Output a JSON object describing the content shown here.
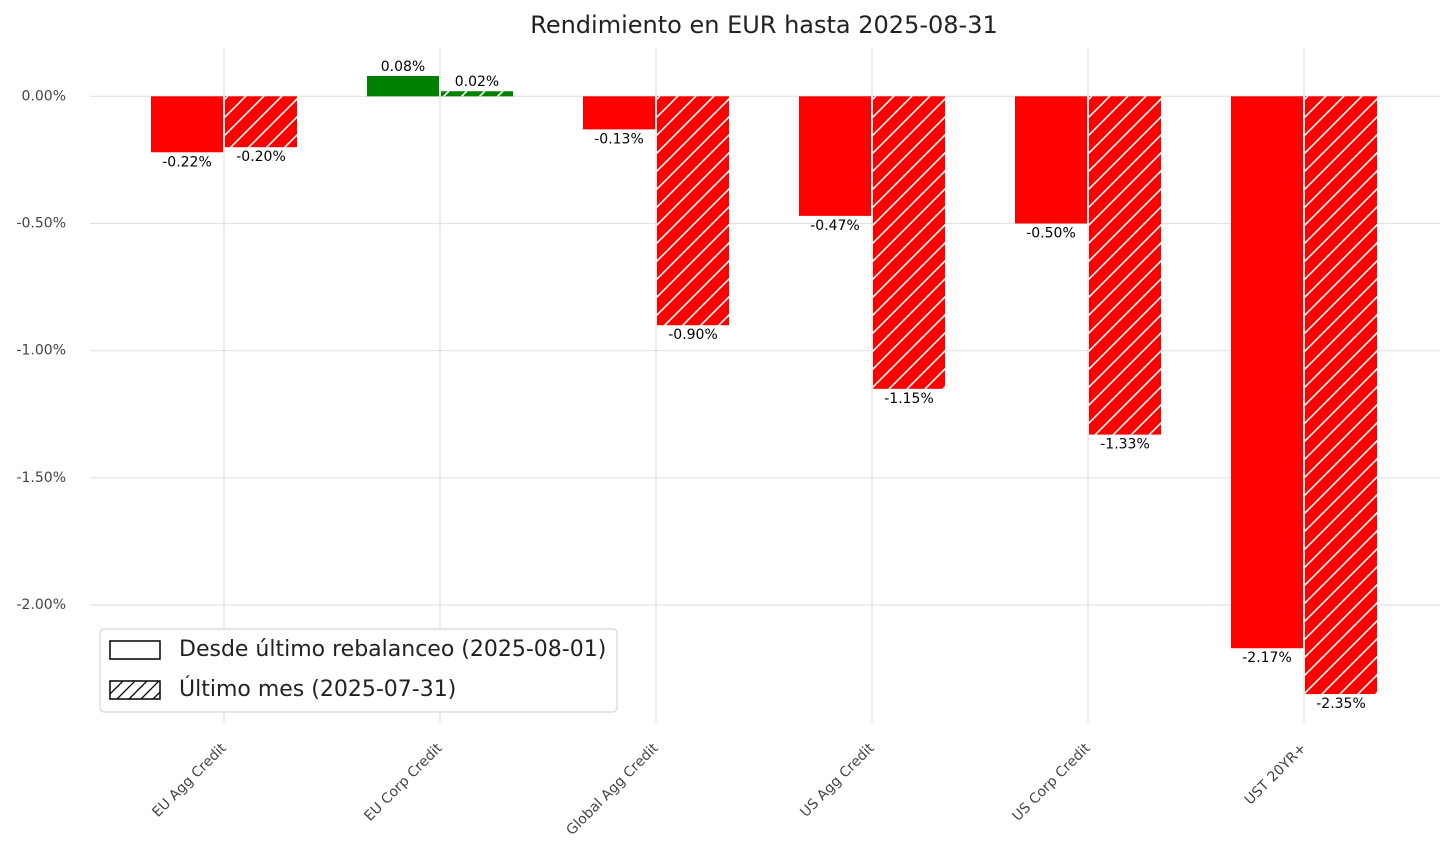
{
  "chart_data": {
    "type": "grouped_bar",
    "title": "Rendimiento en EUR hasta 2025-08-31",
    "categories": [
      "EU Agg Credit",
      "EU Corp Credit",
      "Global Agg Credit",
      "US Agg Credit",
      "US Corp Credit",
      "UST 20YR+"
    ],
    "series": [
      {
        "name": "Desde último rebalanceo (2025-08-01)",
        "hatch": "none",
        "colors": [
          "#ff0000",
          "#008000",
          "#ff0000",
          "#ff0000",
          "#ff0000",
          "#ff0000"
        ],
        "values": [
          -0.22,
          0.08,
          -0.13,
          -0.47,
          -0.5,
          -2.17
        ],
        "value_labels": [
          "-0.22%",
          "0.08%",
          "-0.13%",
          "-0.47%",
          "-0.50%",
          "-2.17%"
        ]
      },
      {
        "name": "Último mes (2025-07-31)",
        "hatch": "//",
        "colors": [
          "#ff0000",
          "#008000",
          "#ff0000",
          "#ff0000",
          "#ff0000",
          "#ff0000"
        ],
        "values": [
          -0.2,
          0.02,
          -0.9,
          -1.15,
          -1.33,
          -2.35
        ],
        "value_labels": [
          "-0.20%",
          "0.02%",
          "-0.90%",
          "-1.15%",
          "-1.33%",
          "-2.35%"
        ]
      }
    ],
    "ylim": [
      -2.46,
      0.19
    ],
    "yticks": [
      {
        "value": 0,
        "label": "0.00%"
      },
      {
        "value": -0.5,
        "label": "-0.50%"
      },
      {
        "value": -1,
        "label": "-1.00%"
      },
      {
        "value": -1.5,
        "label": "-1.50%"
      },
      {
        "value": -2,
        "label": "-2.00%"
      }
    ],
    "grid": true,
    "legend": "lower left"
  }
}
